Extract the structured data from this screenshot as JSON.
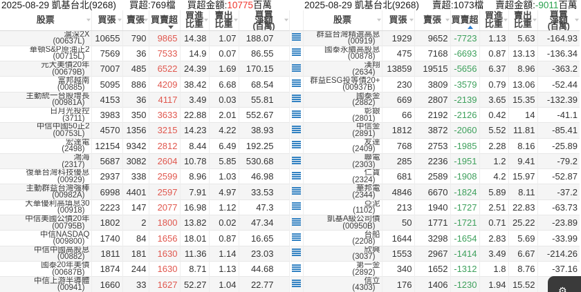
{
  "colors": {
    "positive_red": "#e0574e",
    "negative_green": "#3ea05c",
    "title_red": "#f0342c",
    "title_green": "#2aa14f",
    "icon_blue": "#3181c2",
    "sort_desc_arrow": "#555555",
    "sort_asc_arrow": "#2f7fd0"
  },
  "columns": [
    {
      "key": "stock",
      "lines": [
        "股票"
      ]
    },
    {
      "key": "buy",
      "lines": [
        "買張"
      ]
    },
    {
      "key": "sell",
      "lines": [
        "賣張"
      ]
    },
    {
      "key": "net",
      "lines": [
        "買賣超"
      ]
    },
    {
      "key": "buy_pct",
      "lines": [
        "買進",
        "比重"
      ]
    },
    {
      "key": "sell_pct",
      "lines": [
        "賣出",
        "比重"
      ]
    },
    {
      "key": "amount",
      "lines": [
        "買賣",
        "淨額",
        "(百萬)"
      ]
    }
  ],
  "panels": [
    {
      "title": "2025-08-29 凱基台北(9268)",
      "count_label": "買超:769檔",
      "amount_label": "買超金額:",
      "amount_value": "10775",
      "unit": "百萬",
      "amount_class": "red",
      "row_icons": false,
      "sort": {
        "column": "net",
        "direction": "desc"
      },
      "rows": [
        {
          "name": "滬深2X",
          "code": "(00637L)",
          "buy": "10655",
          "sell": "790",
          "net": "9865",
          "buy_pct": "14.38",
          "sell_pct": "1.07",
          "amount": "188.07"
        },
        {
          "name": "華頓S&P原油正2",
          "code": "(00715L)",
          "buy": "7569",
          "sell": "36",
          "net": "7533",
          "buy_pct": "14.9",
          "sell_pct": "0.07",
          "amount": "86.55"
        },
        {
          "name": "元大美債20年",
          "code": "(00679B)",
          "buy": "7007",
          "sell": "485",
          "net": "6522",
          "buy_pct": "24.39",
          "sell_pct": "1.69",
          "amount": "170.15"
        },
        {
          "name": "富邦越南",
          "code": "(00885)",
          "buy": "5095",
          "sell": "886",
          "net": "4209",
          "buy_pct": "38.42",
          "sell_pct": "6.68",
          "amount": "68.54"
        },
        {
          "name": "主動統一台股增長",
          "code": "(00981A)",
          "buy": "4153",
          "sell": "36",
          "net": "4117",
          "buy_pct": "3.49",
          "sell_pct": "0.03",
          "amount": "55.81"
        },
        {
          "name": "日月光投控",
          "code": "(3711)",
          "buy": "3983",
          "sell": "350",
          "net": "3633",
          "buy_pct": "22.88",
          "sell_pct": "2.01",
          "amount": "552.67"
        },
        {
          "name": "中信中國50正2",
          "code": "(00753L)",
          "buy": "4570",
          "sell": "1356",
          "net": "3215",
          "buy_pct": "14.23",
          "sell_pct": "4.22",
          "amount": "38.93"
        },
        {
          "name": "宏達電",
          "code": "(2498)",
          "buy": "12154",
          "sell": "9342",
          "net": "2812",
          "buy_pct": "8.44",
          "sell_pct": "6.49",
          "amount": "192.25"
        },
        {
          "name": "鴻海",
          "code": "(2317)",
          "buy": "5687",
          "sell": "3082",
          "net": "2604",
          "buy_pct": "10.78",
          "sell_pct": "5.85",
          "amount": "530.68"
        },
        {
          "name": "復華台灣科技優息",
          "code": "(00929)",
          "buy": "2937",
          "sell": "338",
          "net": "2599",
          "buy_pct": "8.96",
          "sell_pct": "1.03",
          "amount": "46.98"
        },
        {
          "name": "主動群益台灣強棒",
          "code": "(00982A)",
          "buy": "6998",
          "sell": "4401",
          "net": "2597",
          "buy_pct": "7.91",
          "sell_pct": "4.97",
          "amount": "33.53"
        },
        {
          "name": "大華優利高填息30",
          "code": "(00918)",
          "buy": "2223",
          "sell": "147",
          "net": "2077",
          "buy_pct": "16.98",
          "sell_pct": "1.12",
          "amount": "47.3"
        },
        {
          "name": "中信美國公債20年",
          "code": "(00795B)",
          "buy": "1802",
          "sell": "2",
          "net": "1800",
          "buy_pct": "13.82",
          "sell_pct": "0.02",
          "amount": "47.34"
        },
        {
          "name": "中信NASDAQ",
          "code": "(009800)",
          "buy": "1740",
          "sell": "84",
          "net": "1656",
          "buy_pct": "18.01",
          "sell_pct": "0.87",
          "amount": "16.65"
        },
        {
          "name": "中信中國高股息",
          "code": "(00882)",
          "buy": "1811",
          "sell": "181",
          "net": "1630",
          "buy_pct": "11.36",
          "sell_pct": "1.14",
          "amount": "23.03"
        },
        {
          "name": "國泰20年美債",
          "code": "(00687B)",
          "buy": "1874",
          "sell": "244",
          "net": "1630",
          "buy_pct": "8.71",
          "sell_pct": "1.13",
          "amount": "44.68"
        },
        {
          "name": "中信上游半導體",
          "code": "(00941)",
          "buy": "1660",
          "sell": "33",
          "net": "1627",
          "buy_pct": "52.27",
          "sell_pct": "1.04",
          "amount": "22.77"
        }
      ]
    },
    {
      "title": "2025-08-29 凱基台北(9268)",
      "count_label": "賣超:1073檔",
      "amount_label": "賣超金額:",
      "amount_value": "-9011",
      "unit": "百萬",
      "amount_class": "green",
      "row_icons": true,
      "sort": {
        "column": "net",
        "direction": "asc"
      },
      "rows": [
        {
          "name": "群益台灣精選高息",
          "code": "(00919)",
          "buy": "1929",
          "sell": "9652",
          "net": "-7723",
          "buy_pct": "1.13",
          "sell_pct": "5.63",
          "amount": "-164.93"
        },
        {
          "name": "國泰永續高股息",
          "code": "(00878)",
          "buy": "475",
          "sell": "7168",
          "net": "-6693",
          "buy_pct": "0.87",
          "sell_pct": "13.13",
          "amount": "-136.34"
        },
        {
          "name": "漢翔",
          "code": "(2634)",
          "buy": "13859",
          "sell": "19515",
          "net": "-5656",
          "buy_pct": "6.37",
          "sell_pct": "8.96",
          "amount": "-363.2"
        },
        {
          "name": "群益ESG投等債20+",
          "code": "(00937B)",
          "buy": "230",
          "sell": "3809",
          "net": "-3579",
          "buy_pct": "0.79",
          "sell_pct": "13.06",
          "amount": "-52.44"
        },
        {
          "name": "國泰金",
          "code": "(2882)",
          "buy": "669",
          "sell": "2807",
          "net": "-2139",
          "buy_pct": "3.65",
          "sell_pct": "15.35",
          "amount": "-132.39"
        },
        {
          "name": "彰銀",
          "code": "(2801)",
          "buy": "66",
          "sell": "2192",
          "net": "-2126",
          "buy_pct": "0.42",
          "sell_pct": "14",
          "amount": "-41.1"
        },
        {
          "name": "中信金",
          "code": "(2891)",
          "buy": "1812",
          "sell": "3872",
          "net": "-2060",
          "buy_pct": "5.52",
          "sell_pct": "11.81",
          "amount": "-85.41"
        },
        {
          "name": "友達",
          "code": "(2409)",
          "buy": "768",
          "sell": "2753",
          "net": "-1985",
          "buy_pct": "2.28",
          "sell_pct": "8.16",
          "amount": "-25.89"
        },
        {
          "name": "聯電",
          "code": "(2303)",
          "buy": "285",
          "sell": "2236",
          "net": "-1951",
          "buy_pct": "1.2",
          "sell_pct": "9.41",
          "amount": "-79.2"
        },
        {
          "name": "仁寶",
          "code": "(2324)",
          "buy": "681",
          "sell": "2589",
          "net": "-1908",
          "buy_pct": "4.2",
          "sell_pct": "15.97",
          "amount": "-52.87"
        },
        {
          "name": "華邦電",
          "code": "(2344)",
          "buy": "4846",
          "sell": "6670",
          "net": "-1824",
          "buy_pct": "5.89",
          "sell_pct": "8.11",
          "amount": "-37.2"
        },
        {
          "name": "亞泥",
          "code": "(1102)",
          "buy": "213",
          "sell": "1940",
          "net": "-1727",
          "buy_pct": "2.51",
          "sell_pct": "22.83",
          "amount": "-63.73"
        },
        {
          "name": "凱基A級公司債",
          "code": "(00950B)",
          "buy": "50",
          "sell": "1771",
          "net": "-1721",
          "buy_pct": "0.71",
          "sell_pct": "25.22",
          "amount": "-23.89"
        },
        {
          "name": "台船",
          "code": "(2208)",
          "buy": "1644",
          "sell": "3298",
          "net": "-1654",
          "buy_pct": "2.83",
          "sell_pct": "5.69",
          "amount": "-33.99"
        },
        {
          "name": "欣興",
          "code": "(3037)",
          "buy": "1553",
          "sell": "2967",
          "net": "-1414",
          "buy_pct": "3.49",
          "sell_pct": "6.67",
          "amount": "-214.26"
        },
        {
          "name": "第一金",
          "code": "(2892)",
          "buy": "340",
          "sell": "1652",
          "net": "-1312",
          "buy_pct": "1.8",
          "sell_pct": "8.76",
          "amount": "-37.16"
        },
        {
          "name": "信立",
          "code": "(4303)",
          "buy": "176",
          "sell": "1406",
          "net": "-1230",
          "buy_pct": "1.94",
          "sell_pct": "15.52",
          "amount": "-85.3"
        }
      ]
    }
  ],
  "fab": {
    "icon": "gear"
  }
}
